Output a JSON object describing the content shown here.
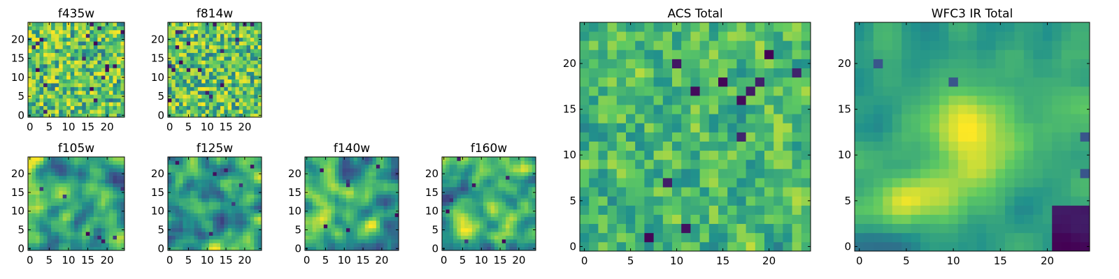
{
  "figure": {
    "colormap": [
      "#440154",
      "#3b528b",
      "#21918c",
      "#5ec962",
      "#fde725"
    ],
    "panel_titles": [
      "f435w",
      "f814w",
      "f105w",
      "f125w",
      "f140w",
      "f160w",
      "ACS Total",
      "WFC3 IR Total"
    ]
  },
  "chart_data": [
    {
      "type": "heatmap",
      "title": "f435w",
      "nx": 25,
      "ny": 25,
      "xlim": [
        -0.5,
        24.5
      ],
      "ylim": [
        -0.5,
        24.5
      ],
      "xticks": [
        0,
        5,
        10,
        15,
        20
      ],
      "yticks": [
        0,
        5,
        10,
        15,
        20
      ],
      "pattern": "noise",
      "seed": 11
    },
    {
      "type": "heatmap",
      "title": "f814w",
      "nx": 25,
      "ny": 25,
      "xlim": [
        -0.5,
        24.5
      ],
      "ylim": [
        -0.5,
        24.5
      ],
      "xticks": [
        0,
        5,
        10,
        15,
        20
      ],
      "yticks": [
        0,
        5,
        10,
        15,
        20
      ],
      "pattern": "noise",
      "seed": 23
    },
    {
      "type": "heatmap",
      "title": "f105w",
      "nx": 25,
      "ny": 25,
      "xlim": [
        -0.5,
        24.5
      ],
      "ylim": [
        -0.5,
        24.5
      ],
      "xticks": [
        0,
        5,
        10,
        15,
        20
      ],
      "yticks": [
        0,
        5,
        10,
        15,
        20
      ],
      "pattern": "smooth",
      "seed": 37
    },
    {
      "type": "heatmap",
      "title": "f125w",
      "nx": 25,
      "ny": 25,
      "xlim": [
        -0.5,
        24.5
      ],
      "ylim": [
        -0.5,
        24.5
      ],
      "xticks": [
        0,
        5,
        10,
        15,
        20
      ],
      "yticks": [
        0,
        5,
        10,
        15,
        20
      ],
      "pattern": "smooth",
      "seed": 41
    },
    {
      "type": "heatmap",
      "title": "f140w",
      "nx": 25,
      "ny": 25,
      "xlim": [
        -0.5,
        24.5
      ],
      "ylim": [
        -0.5,
        24.5
      ],
      "xticks": [
        0,
        5,
        10,
        15,
        20
      ],
      "yticks": [
        0,
        5,
        10,
        15,
        20
      ],
      "pattern": "smooth",
      "seed": 53
    },
    {
      "type": "heatmap",
      "title": "f160w",
      "nx": 25,
      "ny": 25,
      "xlim": [
        -0.5,
        24.5
      ],
      "ylim": [
        -0.5,
        24.5
      ],
      "xticks": [
        0,
        5,
        10,
        15,
        20
      ],
      "yticks": [
        0,
        5,
        10,
        15,
        20
      ],
      "pattern": "smooth",
      "seed": 67
    },
    {
      "type": "heatmap",
      "title": "ACS Total",
      "nx": 25,
      "ny": 25,
      "xlim": [
        -0.5,
        24.5
      ],
      "ylim": [
        -0.5,
        24.5
      ],
      "xticks": [
        0,
        5,
        10,
        15,
        20
      ],
      "yticks": [
        0,
        5,
        10,
        15,
        20
      ],
      "pattern": "bright_noise",
      "seed": 79
    },
    {
      "type": "heatmap",
      "title": "WFC3 IR Total",
      "nx": 25,
      "ny": 25,
      "xlim": [
        -0.5,
        24.5
      ],
      "ylim": [
        -0.5,
        24.5
      ],
      "xticks": [
        0,
        5,
        10,
        15,
        20
      ],
      "yticks": [
        0,
        5,
        10,
        15,
        20
      ],
      "pattern": "central_blob",
      "seed": 97
    }
  ]
}
